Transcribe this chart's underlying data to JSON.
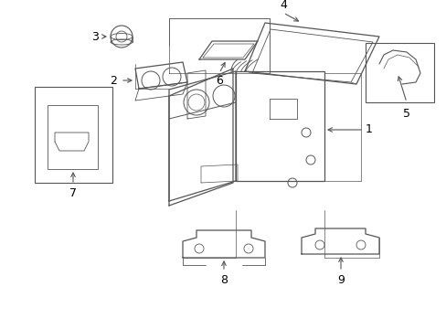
{
  "background_color": "#ffffff",
  "line_color": "#555555",
  "text_color": "#000000",
  "fig_width": 4.89,
  "fig_height": 3.6,
  "dpi": 100
}
